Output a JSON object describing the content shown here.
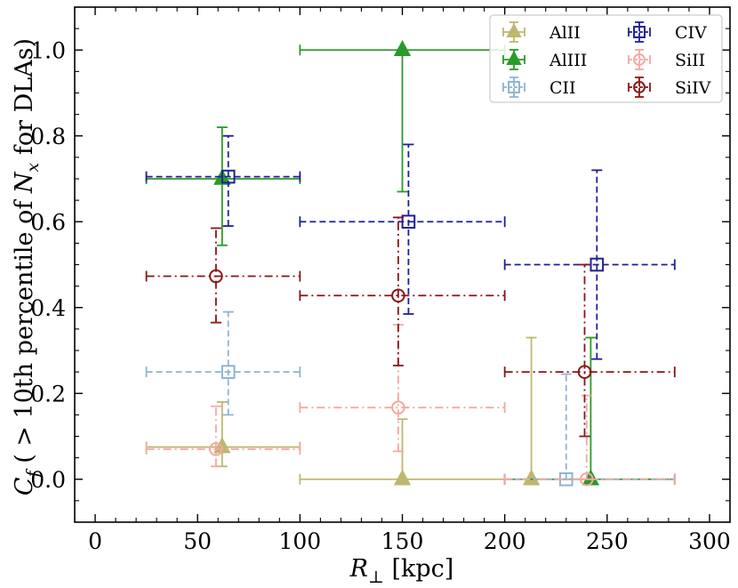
{
  "chart_data": {
    "type": "scatter",
    "xlabel_main": "R",
    "xlabel_sub": "⊥",
    "xlabel_unit": " [kpc]",
    "ylabel_main": "C",
    "ylabel_sub": "f",
    "ylabel_rest1": " ( > 10th percentile of ",
    "ylabel_var": "N",
    "ylabel_var_sub": "x",
    "ylabel_rest2": " for DLAs)",
    "xlim": [
      -10,
      310
    ],
    "ylim": [
      -0.1,
      1.1
    ],
    "xticks": [
      0,
      50,
      100,
      150,
      200,
      250,
      300
    ],
    "yticks": [
      0.0,
      0.2,
      0.4,
      0.6,
      0.8,
      1.0
    ],
    "xtick_labels": [
      "0",
      "50",
      "100",
      "150",
      "200",
      "250",
      "300"
    ],
    "ytick_labels": [
      "0.0",
      "0.2",
      "0.4",
      "0.6",
      "0.8",
      "1.0"
    ],
    "legend_position": "top-right",
    "legend_columns": 2,
    "series": [
      {
        "name": "AlII",
        "color": "#a8a040",
        "marker": "triangle",
        "filled": true,
        "line": "solid",
        "alpha": 0.75,
        "points": [
          {
            "x": 62,
            "y": 0.075,
            "xlo": 25,
            "xhi": 100,
            "ylo": 0.03,
            "yhi": 0.18
          },
          {
            "x": 150,
            "y": 0.0,
            "xlo": 100,
            "xhi": 200,
            "ylo": 0.0,
            "yhi": 0.14
          },
          {
            "x": 213,
            "y": 0.0,
            "xlo": 200,
            "xhi": 283,
            "ylo": 0.0,
            "yhi": 0.33
          }
        ]
      },
      {
        "name": "AlIII",
        "color": "#2a9a2a",
        "marker": "triangle",
        "filled": true,
        "line": "solid",
        "alpha": 1,
        "points": [
          {
            "x": 62,
            "y": 0.7,
            "xlo": 25,
            "xhi": 100,
            "ylo": 0.545,
            "yhi": 0.82
          },
          {
            "x": 150,
            "y": 1.0,
            "xlo": 100,
            "xhi": 200,
            "ylo": 0.67,
            "yhi": 1.0
          },
          {
            "x": 242,
            "y": 0.0,
            "xlo": 200,
            "xhi": 283,
            "ylo": 0.0,
            "yhi": 0.33
          }
        ]
      },
      {
        "name": "CII",
        "color": "#8fb3d4",
        "marker": "square",
        "filled": false,
        "line": "dashed",
        "alpha": 1,
        "points": [
          {
            "x": 65,
            "y": 0.25,
            "xlo": 25,
            "xhi": 100,
            "ylo": 0.15,
            "yhi": 0.39
          },
          {
            "x": 230,
            "y": 0.0,
            "xlo": 200,
            "xhi": 283,
            "ylo": 0.0,
            "yhi": 0.245
          }
        ]
      },
      {
        "name": "CIV",
        "color": "#1f1f9a",
        "marker": "square",
        "filled": false,
        "line": "dashed",
        "alpha": 1,
        "points": [
          {
            "x": 65,
            "y": 0.705,
            "xlo": 25,
            "xhi": 100,
            "ylo": 0.59,
            "yhi": 0.8
          },
          {
            "x": 153,
            "y": 0.6,
            "xlo": 100,
            "xhi": 200,
            "ylo": 0.385,
            "yhi": 0.78
          },
          {
            "x": 245,
            "y": 0.5,
            "xlo": 200,
            "xhi": 283,
            "ylo": 0.28,
            "yhi": 0.72
          }
        ]
      },
      {
        "name": "SiII",
        "color": "#f4a8a0",
        "marker": "circle",
        "filled": false,
        "line": "dashdot",
        "alpha": 1,
        "points": [
          {
            "x": 59,
            "y": 0.07,
            "xlo": 25,
            "xhi": 100,
            "ylo": 0.03,
            "yhi": 0.17
          },
          {
            "x": 148,
            "y": 0.167,
            "xlo": 100,
            "xhi": 200,
            "ylo": 0.065,
            "yhi": 0.36
          },
          {
            "x": 240,
            "y": 0.0,
            "xlo": 200,
            "xhi": 283,
            "ylo": 0.0,
            "yhi": 0.195
          }
        ]
      },
      {
        "name": "SiIV",
        "color": "#8b1515",
        "marker": "circle",
        "filled": false,
        "line": "dashdot",
        "alpha": 1,
        "points": [
          {
            "x": 59,
            "y": 0.473,
            "xlo": 25,
            "xhi": 100,
            "ylo": 0.365,
            "yhi": 0.585
          },
          {
            "x": 148,
            "y": 0.428,
            "xlo": 100,
            "xhi": 200,
            "ylo": 0.265,
            "yhi": 0.61
          },
          {
            "x": 239,
            "y": 0.25,
            "xlo": 200,
            "xhi": 283,
            "ylo": 0.1,
            "yhi": 0.5
          }
        ]
      }
    ]
  }
}
